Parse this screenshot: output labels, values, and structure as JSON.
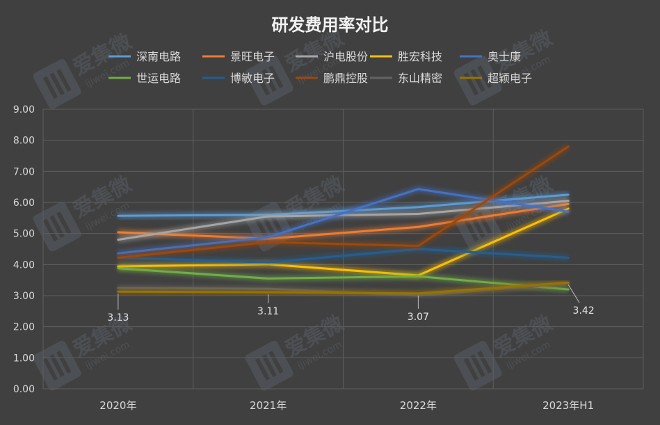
{
  "chart_data": {
    "type": "line",
    "title": "研发费用率对比",
    "categories": [
      "2020年",
      "2021年",
      "2022年",
      "2023年H1"
    ],
    "ylim": [
      0,
      9
    ],
    "yticks": [
      "0.00",
      "1.00",
      "2.00",
      "3.00",
      "4.00",
      "5.00",
      "6.00",
      "7.00",
      "8.00",
      "9.00"
    ],
    "grid": true,
    "legend_position": "top",
    "series": [
      {
        "name": "深南电路",
        "color": "#5B9BD5",
        "values": [
          5.57,
          5.6,
          5.85,
          6.25
        ]
      },
      {
        "name": "景旺电子",
        "color": "#ED7D31",
        "values": [
          5.04,
          4.83,
          5.21,
          5.95
        ]
      },
      {
        "name": "沪电股份",
        "color": "#A5A5A5",
        "values": [
          4.8,
          5.55,
          5.63,
          6.05
        ]
      },
      {
        "name": "胜宏科技",
        "color": "#FFC000",
        "values": [
          3.94,
          4.01,
          3.65,
          5.8
        ]
      },
      {
        "name": "奥士康",
        "color": "#4472C4",
        "values": [
          4.36,
          4.88,
          6.43,
          5.7
        ]
      },
      {
        "name": "世运电路",
        "color": "#70AD47",
        "values": [
          3.88,
          3.55,
          3.62,
          3.2
        ]
      },
      {
        "name": "博敏电子",
        "color": "#255E91",
        "values": [
          4.22,
          4.07,
          4.5,
          4.22
        ]
      },
      {
        "name": "鹏鼎控股",
        "color": "#9E480E",
        "values": [
          4.22,
          4.72,
          4.6,
          7.8
        ]
      },
      {
        "name": "东山精密",
        "color": "#636363",
        "values": [
          3.25,
          3.22,
          3.0,
          3.4
        ]
      },
      {
        "name": "超颖电子",
        "color": "#997300",
        "values": [
          3.13,
          3.11,
          3.07,
          3.42
        ]
      }
    ],
    "data_labels": [
      {
        "series": "超颖电子",
        "category": "2020年",
        "text": "3.13"
      },
      {
        "series": "超颖电子",
        "category": "2021年",
        "text": "3.11"
      },
      {
        "series": "超颖电子",
        "category": "2022年",
        "text": "3.07"
      },
      {
        "series": "超颖电子",
        "category": "2023年H1",
        "text": "3.42"
      }
    ]
  },
  "watermark": {
    "text": "爱集微",
    "url": "ijiwei.com"
  }
}
